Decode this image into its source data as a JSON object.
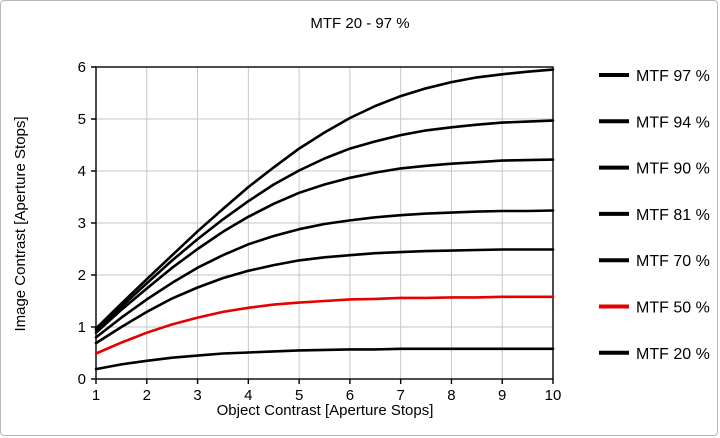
{
  "chart_data": {
    "type": "line",
    "title": "MTF 20 - 97 %",
    "xlabel": "Object Contrast [Aperture Stops]",
    "ylabel": "Image Contrast [Aperture Stops]",
    "xlim": [
      1,
      10
    ],
    "ylim": [
      0,
      6
    ],
    "xticks": [
      1,
      2,
      3,
      4,
      5,
      6,
      7,
      8,
      9,
      10
    ],
    "yticks": [
      0,
      1,
      2,
      3,
      4,
      5,
      6
    ],
    "grid": true,
    "legend_position": "right",
    "colors": {
      "curve_default": "#000000",
      "curve_highlight": "#e60000",
      "grid": "#c6c6c6",
      "axis": "#000000",
      "background": "#ffffff"
    },
    "x": [
      1,
      1.5,
      2,
      2.5,
      3,
      3.5,
      4,
      4.5,
      5,
      5.5,
      6,
      6.5,
      7,
      7.5,
      8,
      8.5,
      9,
      9.5,
      10
    ],
    "series": [
      {
        "name": "MTF 97 %",
        "color": "#000000",
        "values": [
          0.97,
          1.45,
          1.92,
          2.38,
          2.84,
          3.27,
          3.69,
          4.07,
          4.43,
          4.74,
          5.02,
          5.25,
          5.44,
          5.59,
          5.71,
          5.8,
          5.86,
          5.91,
          5.95
        ]
      },
      {
        "name": "MTF 94 %",
        "color": "#000000",
        "values": [
          0.94,
          1.39,
          1.84,
          2.28,
          2.69,
          3.07,
          3.42,
          3.74,
          4.01,
          4.24,
          4.43,
          4.57,
          4.69,
          4.78,
          4.84,
          4.89,
          4.93,
          4.95,
          4.97
        ]
      },
      {
        "name": "MTF 90 %",
        "color": "#000000",
        "values": [
          0.89,
          1.33,
          1.74,
          2.14,
          2.5,
          2.83,
          3.12,
          3.37,
          3.58,
          3.74,
          3.87,
          3.97,
          4.05,
          4.1,
          4.14,
          4.17,
          4.2,
          4.21,
          4.22
        ]
      },
      {
        "name": "MTF 81 %",
        "color": "#000000",
        "values": [
          0.8,
          1.18,
          1.53,
          1.85,
          2.14,
          2.38,
          2.59,
          2.75,
          2.88,
          2.98,
          3.05,
          3.11,
          3.15,
          3.18,
          3.2,
          3.22,
          3.23,
          3.23,
          3.24
        ]
      },
      {
        "name": "MTF 70 %",
        "color": "#000000",
        "values": [
          0.69,
          1.0,
          1.29,
          1.55,
          1.76,
          1.94,
          2.08,
          2.19,
          2.28,
          2.34,
          2.38,
          2.42,
          2.44,
          2.46,
          2.47,
          2.48,
          2.49,
          2.49,
          2.49
        ]
      },
      {
        "name": "MTF 50 %",
        "color": "#e60000",
        "values": [
          0.49,
          0.7,
          0.89,
          1.05,
          1.18,
          1.29,
          1.37,
          1.43,
          1.47,
          1.5,
          1.53,
          1.54,
          1.56,
          1.56,
          1.57,
          1.57,
          1.58,
          1.58,
          1.58
        ]
      },
      {
        "name": "MTF 20 %",
        "color": "#000000",
        "values": [
          0.19,
          0.28,
          0.35,
          0.41,
          0.45,
          0.49,
          0.51,
          0.53,
          0.55,
          0.56,
          0.57,
          0.57,
          0.58,
          0.58,
          0.58,
          0.58,
          0.58,
          0.58,
          0.58
        ]
      }
    ]
  }
}
